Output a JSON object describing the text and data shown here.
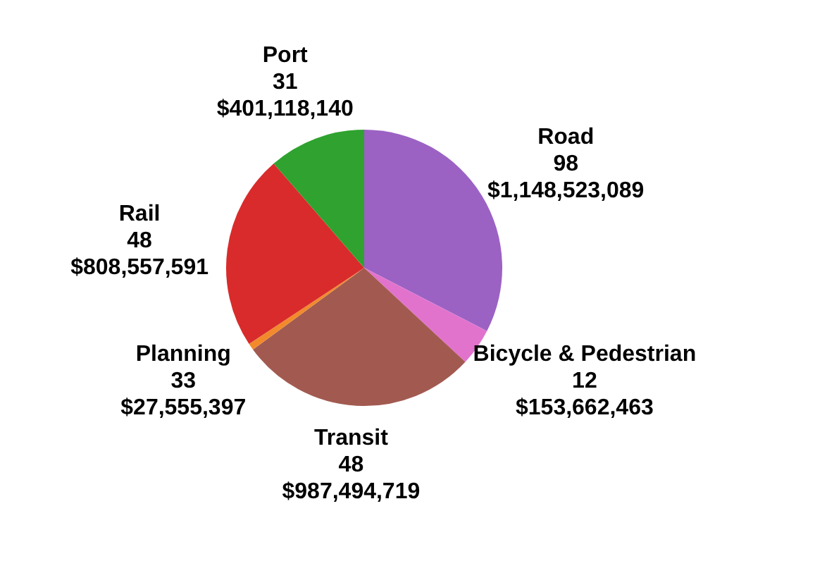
{
  "chart_data": {
    "type": "pie",
    "categories": [
      "Road",
      "Bicycle & Pedestrian",
      "Transit",
      "Planning",
      "Rail",
      "Port"
    ],
    "values": [
      1148523089,
      153662463,
      987494719,
      27555397,
      808557591,
      401118140
    ],
    "value_labels": [
      "98\n$1,148,523,089",
      "12\n$153,662,463",
      "48\n$987,494,719",
      "33\n$27,555,397",
      "48\n$808,557,591",
      "31\n$401,118,140"
    ],
    "colors": [
      "#9b62c4",
      "#e273cd",
      "#a25a50",
      "#f28a2c",
      "#d92b2b",
      "#2fa22f"
    ],
    "legend": false
  }
}
